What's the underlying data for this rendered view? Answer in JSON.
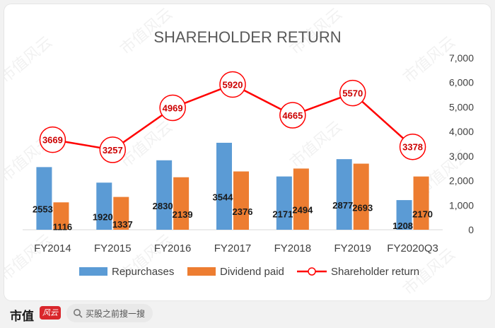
{
  "chart_data": {
    "type": "bar",
    "title": "SHAREHOLDER RETURN",
    "categories": [
      "FY2014",
      "FY2015",
      "FY2016",
      "FY2017",
      "FY2018",
      "FY2019",
      "FY2020Q3"
    ],
    "ylim": [
      0,
      7000
    ],
    "yticks": [
      "0",
      "1,000",
      "2,000",
      "3,000",
      "4,000",
      "5,000",
      "6,000",
      "7,000"
    ],
    "yaxis_position": "right",
    "grid": false,
    "legend": "bottom",
    "series": [
      {
        "name": "Repurchases",
        "kind": "bar",
        "color": "#5b9bd5",
        "values": [
          2553,
          1920,
          2830,
          3544,
          2171,
          2877,
          1208
        ],
        "labels": [
          "2553",
          "1920",
          "2830",
          "3544",
          "2171",
          "2877",
          "1208"
        ]
      },
      {
        "name": "Dividend paid",
        "kind": "bar",
        "color": "#ed7d31",
        "values": [
          1116,
          1337,
          2139,
          2376,
          2494,
          2693,
          2170
        ],
        "labels": [
          "1116",
          "1337",
          "2139",
          "2376",
          "2494",
          "2693",
          "2170"
        ]
      },
      {
        "name": "Shareholder return",
        "kind": "line",
        "color": "#ff0000",
        "values": [
          3669,
          3257,
          4969,
          5920,
          4665,
          5570,
          3378
        ],
        "labels": [
          "3669",
          "3257",
          "4969",
          "5920",
          "4665",
          "5570",
          "3378"
        ]
      }
    ]
  },
  "watermark": "市值风云",
  "footer": {
    "brand": "市值",
    "logo_text": "风云",
    "search_icon": "search-icon",
    "search_placeholder": "买股之前搜一搜"
  }
}
